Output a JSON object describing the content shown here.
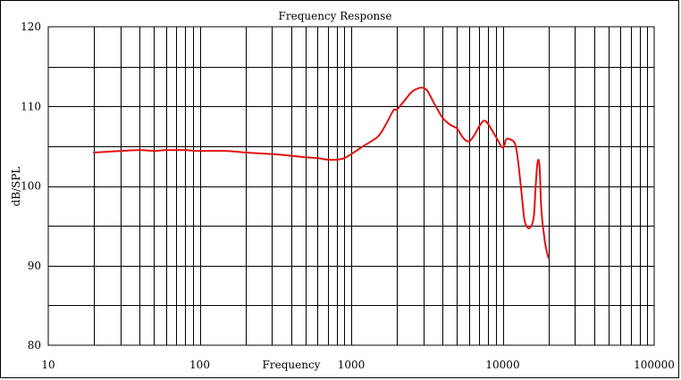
{
  "chart_data": {
    "type": "line",
    "title": "Frequency Response",
    "xlabel": "Frequency",
    "ylabel": "dB/SPL",
    "x_scale": "log",
    "xlim": [
      10,
      100000
    ],
    "ylim": [
      80,
      120
    ],
    "grid": true,
    "x_tick_labels": [
      "10",
      "100",
      "1000",
      "10000",
      "100000"
    ],
    "y_tick_labels": [
      "80",
      "90",
      "100",
      "110",
      "120"
    ],
    "colors": {
      "series": "#e31010",
      "grid": "#000000"
    },
    "series": [
      {
        "x": [
          20,
          30,
          40,
          50,
          60,
          80,
          100,
          150,
          200,
          300,
          400,
          500,
          600,
          700,
          800,
          900,
          1000,
          1200,
          1500,
          1700,
          1900,
          2000,
          2200,
          2500,
          2800,
          3000,
          3200,
          3500,
          4000,
          4500,
          5000,
          5500,
          6000,
          6500,
          7000,
          7500,
          8000,
          9000,
          10000,
          10500,
          11000,
          12000,
          12500,
          13000,
          13500,
          14000,
          15000,
          16000,
          16500,
          17000,
          17500,
          18000,
          19000,
          20000
        ],
        "y": [
          104.2,
          104.4,
          104.5,
          104.4,
          104.5,
          104.5,
          104.4,
          104.4,
          104.2,
          104.0,
          103.8,
          103.6,
          103.5,
          103.3,
          103.3,
          103.5,
          104.0,
          105.0,
          106.2,
          107.8,
          109.5,
          109.6,
          110.5,
          111.8,
          112.3,
          112.3,
          111.9,
          110.5,
          108.6,
          107.7,
          107.2,
          106.0,
          105.6,
          106.4,
          107.5,
          108.2,
          107.8,
          106.2,
          104.8,
          105.8,
          105.9,
          105.4,
          103.8,
          101.0,
          98.0,
          95.5,
          94.7,
          96.0,
          100.0,
          103.0,
          102.5,
          97.0,
          93.0,
          91.0
        ]
      }
    ]
  }
}
